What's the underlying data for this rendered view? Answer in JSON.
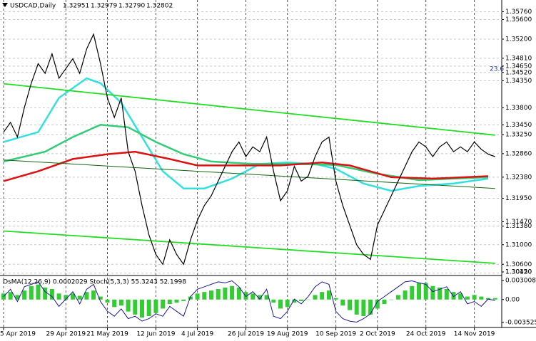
{
  "header": {
    "symbol": "USDCAD,Daily",
    "ohlc": [
      "1.32951",
      "1.32979",
      "1.32790",
      "1.32802"
    ]
  },
  "chart_data": [
    {
      "type": "line",
      "categories": [
        "5 Apr 2019",
        null,
        null,
        null,
        null,
        null,
        null,
        null,
        null,
        "29 Apr 2019",
        null,
        null,
        null,
        null,
        null,
        "21 May 2019",
        null,
        null,
        null,
        null,
        null,
        null,
        "12 Jun 2019",
        null,
        null,
        null,
        null,
        null,
        "4 Jul 2019",
        null,
        null,
        null,
        null,
        null,
        null,
        "26 Jul 2019",
        null,
        null,
        null,
        null,
        null,
        "19 Aug 2019",
        null,
        null,
        null,
        null,
        null,
        null,
        "10 Sep 2019",
        null,
        null,
        null,
        null,
        null,
        "2 Oct 2019",
        null,
        null,
        null,
        null,
        null,
        null,
        "24 Oct 2019",
        null,
        null,
        null,
        null,
        null,
        null,
        "14 Nov 2019",
        null,
        null,
        null
      ],
      "series": [
        {
          "color": "#000000",
          "values": [
            1.333,
            1.335,
            1.332,
            1.338,
            1.343,
            1.347,
            1.345,
            1.349,
            1.344,
            1.346,
            1.348,
            1.345,
            1.35,
            1.353,
            1.347,
            1.34,
            1.336,
            1.34,
            1.329,
            1.325,
            1.318,
            1.312,
            1.308,
            1.306,
            1.311,
            1.308,
            1.306,
            1.311,
            1.315,
            1.318,
            1.32,
            1.323,
            1.326,
            1.329,
            1.331,
            1.328,
            1.33,
            1.329,
            1.332,
            1.325,
            1.319,
            1.321,
            1.326,
            1.323,
            1.324,
            1.328,
            1.331,
            1.332,
            1.323,
            1.318,
            1.314,
            1.31,
            1.308,
            1.307,
            1.314,
            1.317,
            1.32,
            1.323,
            1.326,
            1.329,
            1.331,
            1.33,
            1.328,
            1.33,
            1.331,
            1.329,
            1.33,
            1.329,
            1.331,
            1.3295,
            1.3285,
            1.328
          ]
        }
      ],
      "lines": [
        {
          "color": "#33e0e0",
          "x": [
            0,
            5,
            8,
            12,
            14,
            17,
            20,
            23,
            26,
            29,
            33,
            37,
            41,
            45,
            48,
            52,
            56,
            60,
            65,
            70
          ],
          "values": [
            1.331,
            1.333,
            1.34,
            1.344,
            1.343,
            1.339,
            1.332,
            1.325,
            1.3215,
            1.3215,
            1.3235,
            1.3265,
            1.3268,
            1.3265,
            1.3255,
            1.3225,
            1.321,
            1.322,
            1.3225,
            1.3235
          ]
        },
        {
          "color": "#33cc77",
          "x": [
            0,
            6,
            10,
            14,
            18,
            22,
            26,
            30,
            36,
            42,
            48,
            54,
            60,
            70
          ],
          "values": [
            1.327,
            1.329,
            1.332,
            1.3345,
            1.334,
            1.331,
            1.3285,
            1.327,
            1.3265,
            1.3265,
            1.3263,
            1.3245,
            1.3232,
            1.3238
          ]
        },
        {
          "color": "#dd1111",
          "x": [
            0,
            5,
            10,
            15,
            19,
            24,
            28,
            34,
            40,
            46,
            50,
            56,
            62,
            70
          ],
          "values": [
            1.323,
            1.325,
            1.3275,
            1.3285,
            1.329,
            1.3275,
            1.3262,
            1.3262,
            1.3262,
            1.3268,
            1.3262,
            1.3238,
            1.3235,
            1.324
          ]
        },
        {
          "color": "#22dd22",
          "x": [
            0,
            71
          ],
          "values": [
            1.3429,
            1.3324
          ]
        },
        {
          "color": "#116611",
          "x": [
            0,
            71
          ],
          "values": [
            1.3273,
            1.3215
          ]
        },
        {
          "color": "#22dd22",
          "x": [
            0,
            71
          ],
          "values": [
            1.3128,
            1.3062
          ]
        }
      ],
      "annotation": "23.6",
      "ylim": [
        1.304,
        1.36
      ],
      "yticks": [
        {
          "value": 1.3576,
          "label": "1.35760"
        },
        {
          "value": 1.356,
          "label": "1.35600"
        },
        {
          "value": 1.352,
          "label": "1.35200"
        },
        {
          "value": 1.3481,
          "label": "1.34810"
        },
        {
          "value": 1.3465,
          "label": "1.34650"
        },
        {
          "value": 1.3452,
          "label": "1.34520"
        },
        {
          "value": 1.3435,
          "label": "1.34350"
        },
        {
          "value": 1.338,
          "label": "1.33800"
        },
        {
          "value": 1.3345,
          "label": "1.33450"
        },
        {
          "value": 1.3325,
          "label": "1.33250"
        },
        {
          "value": 1.3286,
          "label": "1.32860"
        },
        {
          "value": 1.3238,
          "label": "1.32380"
        },
        {
          "value": 1.3195,
          "label": "1.31950"
        },
        {
          "value": 1.3147,
          "label": "1.31470"
        },
        {
          "value": 1.3138,
          "label": "1.31380"
        },
        {
          "value": 1.31,
          "label": "1.31000"
        },
        {
          "value": 1.306,
          "label": "1.30600"
        },
        {
          "value": 1.3042,
          "label": "1.30420"
        },
        {
          "value": 1.3015,
          "label": "1.30150"
        }
      ],
      "grid": true
    },
    {
      "type": "oscillator",
      "label": "OsMA(12,26,9) 0.0002029  Stoch(5,3,3) 55.3243 52.1998",
      "osma": {
        "color": "#33cc33",
        "values": [
          0.0008,
          0.001,
          0.0006,
          0.0012,
          0.0018,
          0.002,
          0.0016,
          0.0014,
          0.0008,
          0.0006,
          0.0008,
          0.0005,
          0.001,
          0.0012,
          0.0004,
          -0.0004,
          -0.001,
          -0.0008,
          -0.0016,
          -0.002,
          -0.0024,
          -0.0022,
          -0.0018,
          -0.0012,
          -0.0006,
          -0.0004,
          -0.0002,
          0.0004,
          0.0008,
          0.001,
          0.0012,
          0.0014,
          0.0016,
          0.0018,
          0.0016,
          0.001,
          0.0008,
          0.0006,
          0.0006,
          -0.0004,
          -0.0012,
          -0.001,
          -0.0004,
          -0.0002,
          0.0,
          0.0006,
          0.001,
          0.0012,
          0.0002,
          -0.0008,
          -0.0014,
          -0.002,
          -0.0022,
          -0.002,
          -0.0012,
          -0.0006,
          0.0,
          0.0006,
          0.0012,
          0.0018,
          0.0022,
          0.0022,
          0.0018,
          0.0016,
          0.0014,
          0.001,
          0.0008,
          0.0004,
          0.0006,
          0.0004,
          0.0002,
          0.0002
        ]
      },
      "stoch": {
        "color": "#1a1a99",
        "ylim": [
          0,
          100
        ],
        "values": [
          60,
          75,
          50,
          80,
          85,
          90,
          70,
          60,
          40,
          55,
          70,
          45,
          75,
          85,
          50,
          30,
          20,
          35,
          15,
          20,
          10,
          15,
          25,
          20,
          40,
          30,
          20,
          60,
          75,
          80,
          85,
          90,
          88,
          92,
          80,
          60,
          70,
          55,
          75,
          20,
          15,
          30,
          55,
          45,
          60,
          80,
          90,
          85,
          30,
          15,
          10,
          8,
          15,
          25,
          50,
          60,
          70,
          80,
          90,
          92,
          88,
          85,
          70,
          75,
          80,
          60,
          70,
          45,
          50,
          40,
          55,
          52
        ]
      },
      "ylim": [
        -0.003525,
        0.0030085
      ],
      "yticks": [
        0.0030085,
        {
          "value": 0,
          "label": "0.00"
        },
        -0.003525
      ]
    }
  ]
}
